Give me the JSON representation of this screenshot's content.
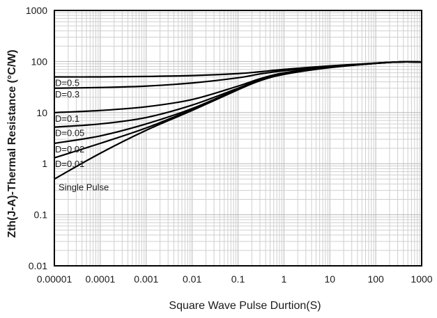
{
  "chart_data": {
    "type": "line",
    "xlabel": "Square Wave Pulse Durtion(S)",
    "ylabel": "Zth(J-A)-Thermal Resistance (°C/W)",
    "x_scale": "log",
    "y_scale": "log",
    "xlim": [
      1e-05,
      1000
    ],
    "ylim": [
      0.01,
      1000
    ],
    "x_tick_labels": [
      "0.00001",
      "0.0001",
      "0.001",
      "0.01",
      "0.1",
      "1",
      "10",
      "100",
      "1000"
    ],
    "y_tick_labels": [
      "0.01",
      "0.1",
      "1",
      "10",
      "100",
      "1000"
    ],
    "grid": true,
    "series": [
      {
        "name": "D=0.5",
        "x": [
          1e-05,
          0.0001,
          0.001,
          0.01,
          0.1,
          0.3,
          1,
          10,
          100,
          300,
          1000
        ],
        "y": [
          50,
          50,
          51,
          53,
          58,
          63,
          70,
          82,
          93,
          98,
          98
        ]
      },
      {
        "name": "D=0.3",
        "x": [
          1e-05,
          0.0001,
          0.001,
          0.01,
          0.1,
          0.3,
          1,
          10,
          100,
          300,
          1000
        ],
        "y": [
          30,
          31,
          33,
          38,
          48,
          57,
          66,
          80,
          93,
          98,
          98
        ]
      },
      {
        "name": "D=0.1",
        "x": [
          1e-05,
          0.0001,
          0.001,
          0.01,
          0.1,
          0.3,
          1,
          10,
          100,
          300,
          1000
        ],
        "y": [
          10,
          11,
          13,
          18,
          33,
          46,
          60,
          78,
          92,
          98,
          98
        ]
      },
      {
        "name": "D=0.05",
        "x": [
          1e-05,
          0.0001,
          0.001,
          0.01,
          0.1,
          0.3,
          1,
          10,
          100,
          300,
          1000
        ],
        "y": [
          5.2,
          6,
          8,
          14,
          30,
          44,
          58,
          77,
          92,
          98,
          98
        ]
      },
      {
        "name": "D=0.02",
        "x": [
          1e-05,
          0.0001,
          0.001,
          0.01,
          0.1,
          0.3,
          1,
          10,
          100,
          300,
          1000
        ],
        "y": [
          2.5,
          3.5,
          6,
          12,
          29,
          43,
          57,
          77,
          92,
          98,
          98
        ]
      },
      {
        "name": "D=0.01",
        "x": [
          1e-05,
          0.0001,
          0.001,
          0.01,
          0.1,
          0.3,
          1,
          10,
          100,
          300,
          1000
        ],
        "y": [
          1.3,
          2.5,
          5,
          11.5,
          28.5,
          43,
          57,
          77,
          92,
          98,
          98
        ]
      },
      {
        "name": "Single Pulse",
        "x": [
          1e-05,
          0.0001,
          0.001,
          0.01,
          0.1,
          0.3,
          1,
          10,
          100,
          300,
          1000
        ],
        "y": [
          0.5,
          1.6,
          4.5,
          11,
          28,
          42,
          56,
          76,
          92,
          98,
          98
        ]
      }
    ]
  }
}
